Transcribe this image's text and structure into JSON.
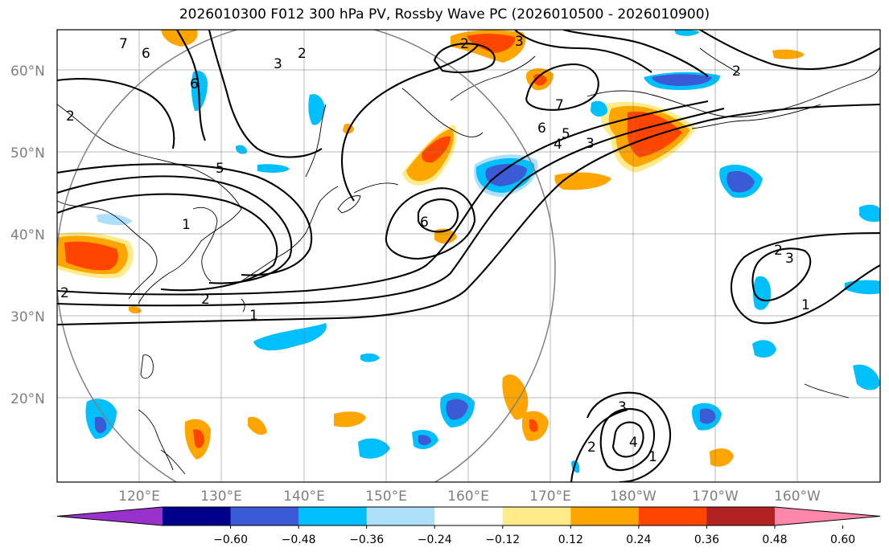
{
  "title": "2026010300 F012 300 hPa PV, Rossby Wave PC (2026010500 - 2026010900)",
  "lat_labels": [
    "60°N",
    "50°N",
    "40°N",
    "30°N",
    "20°N"
  ],
  "lon_labels": [
    "120°E",
    "130°E",
    "140°E",
    "150°E",
    "160°E",
    "170°E",
    "180°W",
    "170°W",
    "160°W"
  ],
  "colorbar": {
    "colors": [
      "#9932cc",
      "#00008b",
      "#3b5bd6",
      "#00bfff",
      "#aee0fa",
      "#ffffff",
      "#ffeb8a",
      "#ffa500",
      "#ff4500",
      "#b22222",
      "#ff88aa"
    ],
    "tick_labels": [
      "−0.60",
      "−0.48",
      "−0.36",
      "−0.24",
      "−0.12",
      "0.12",
      "0.24",
      "0.36",
      "0.48",
      "0.60"
    ]
  },
  "contour_labels": [
    "7",
    "6",
    "2",
    "3",
    "2",
    "6",
    "5",
    "1",
    "2",
    "1",
    "2",
    "3",
    "2",
    "7",
    "6",
    "5",
    "4",
    "3",
    "6",
    "2",
    "3",
    "1",
    "3",
    "2",
    "4",
    "1",
    "2"
  ],
  "legend_colors": {
    "ocean": "#ffffff",
    "frame": "#000000",
    "grid": "#808080"
  }
}
